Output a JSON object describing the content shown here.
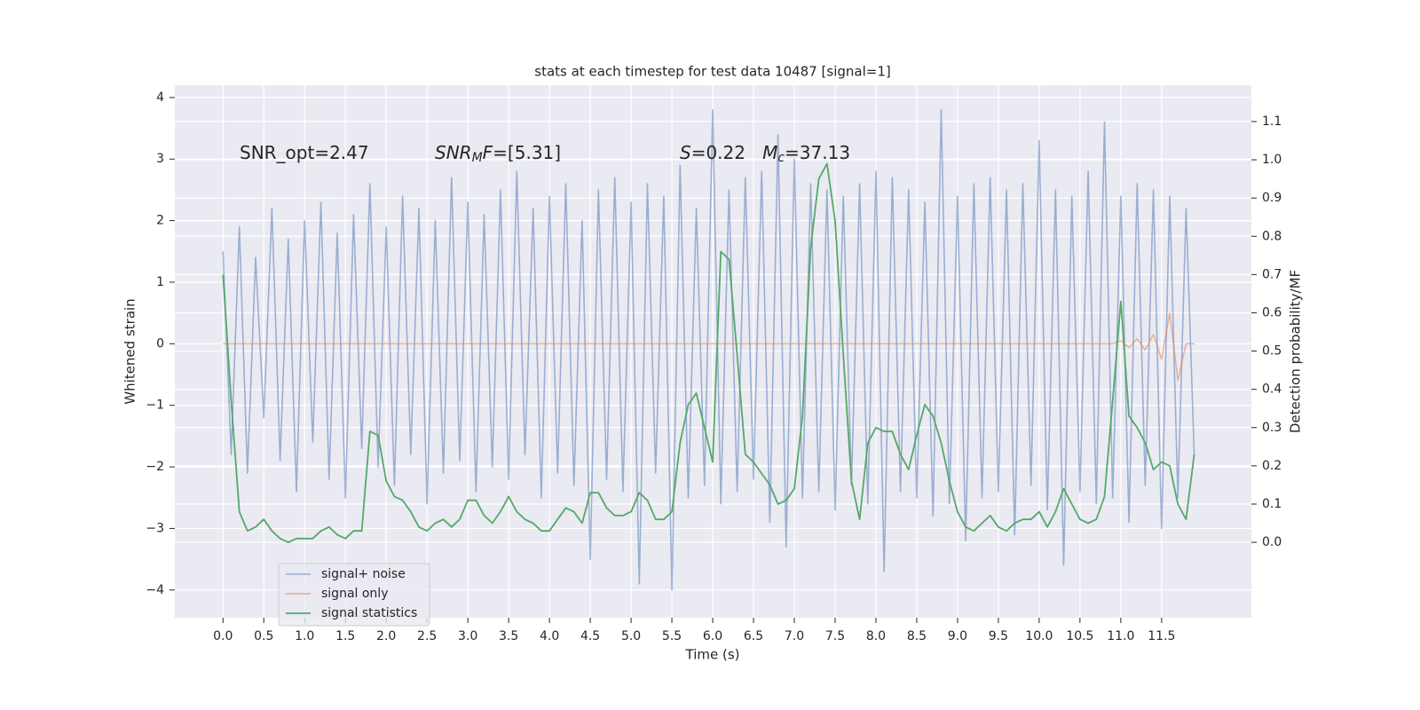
{
  "chart_data": {
    "type": "line",
    "title": "stats at each timestep for test data 10487 [signal=1]",
    "x_label": "Time (s)",
    "y_label": "Whitened strain",
    "y2_label": "Detection probability/MF",
    "annotations": [
      [
        {
          "text": "SNR_opt=2.47"
        }
      ],
      [
        {
          "text": "SNR",
          "italic": true
        },
        {
          "text": "M",
          "italic": true,
          "sub": true
        },
        {
          "text": "F",
          "italic": true
        },
        {
          "text": "=[5.31]"
        }
      ],
      [
        {
          "text": "S",
          "italic": true
        },
        {
          "text": "=0.22   "
        },
        {
          "text": "M",
          "italic": true
        },
        {
          "text": "c",
          "italic": true,
          "sub": true
        },
        {
          "text": "=37.13"
        }
      ]
    ],
    "x": [
      0,
      0.1,
      0.2,
      0.3,
      0.4,
      0.5,
      0.6,
      0.7,
      0.8,
      0.9,
      1,
      1.1,
      1.2,
      1.3,
      1.4,
      1.5,
      1.6,
      1.7,
      1.8,
      1.9,
      2,
      2.1,
      2.2,
      2.3,
      2.4,
      2.5,
      2.6,
      2.7,
      2.8,
      2.9,
      3,
      3.1,
      3.2,
      3.3,
      3.4,
      3.5,
      3.6,
      3.7,
      3.8,
      3.9,
      4,
      4.1,
      4.2,
      4.3,
      4.4,
      4.5,
      4.6,
      4.7,
      4.8,
      4.9,
      5,
      5.1,
      5.2,
      5.3,
      5.4,
      5.5,
      5.6,
      5.7,
      5.8,
      5.9,
      6,
      6.1,
      6.2,
      6.3,
      6.4,
      6.5,
      6.6,
      6.7,
      6.8,
      6.9,
      7,
      7.1,
      7.2,
      7.3,
      7.4,
      7.5,
      7.6,
      7.7,
      7.8,
      7.9,
      8,
      8.1,
      8.2,
      8.3,
      8.4,
      8.5,
      8.6,
      8.7,
      8.8,
      8.9,
      9,
      9.1,
      9.2,
      9.3,
      9.4,
      9.5,
      9.6,
      9.7,
      9.8,
      9.9,
      10,
      10.1,
      10.2,
      10.3,
      10.4,
      10.5,
      10.6,
      10.7,
      10.8,
      10.9,
      11,
      11.1,
      11.2,
      11.3,
      11.4,
      11.5,
      11.6,
      11.7,
      11.8,
      11.9
    ],
    "series": [
      {
        "name": "signal+ noise",
        "color": "#4c72b0",
        "values": [
          1.5,
          -1.8,
          1.9,
          -2.1,
          1.4,
          -1.2,
          2.2,
          -1.9,
          1.7,
          -2.4,
          2.0,
          -1.6,
          2.3,
          -2.2,
          1.8,
          -2.5,
          2.1,
          -1.7,
          2.6,
          -2.0,
          1.9,
          -2.3,
          2.4,
          -1.8,
          2.2,
          -2.6,
          2.0,
          -2.1,
          2.7,
          -1.9,
          2.3,
          -2.4,
          2.1,
          -2.0,
          2.5,
          -2.2,
          2.8,
          -1.8,
          2.2,
          -2.5,
          2.4,
          -2.1,
          2.6,
          -2.3,
          2.0,
          -3.5,
          2.5,
          -2.2,
          2.7,
          -2.4,
          2.3,
          -3.9,
          2.6,
          -2.1,
          2.4,
          -4.0,
          2.9,
          -2.5,
          2.2,
          -2.3,
          3.8,
          -2.6,
          2.5,
          -2.4,
          2.7,
          -2.2,
          2.8,
          -2.9,
          3.4,
          -3.3,
          3.0,
          -2.5,
          2.6,
          -2.4,
          2.5,
          -2.7,
          2.4,
          -2.3,
          2.6,
          -2.6,
          2.8,
          -3.7,
          2.7,
          -2.4,
          2.5,
          -2.5,
          2.3,
          -2.8,
          3.8,
          -2.6,
          2.4,
          -3.2,
          2.6,
          -2.5,
          2.7,
          -2.4,
          2.5,
          -3.1,
          2.6,
          -2.3,
          3.3,
          -2.7,
          2.5,
          -3.6,
          2.4,
          -2.4,
          2.8,
          -2.6,
          3.6,
          -2.5,
          2.4,
          -2.9,
          2.6,
          -2.3,
          2.5,
          -3.0,
          2.4,
          -2.5,
          2.2,
          -1.8
        ]
      },
      {
        "name": "signal only",
        "color": "#dd8452",
        "values": [
          0,
          0,
          0,
          0,
          0,
          0,
          0,
          0,
          0,
          0,
          0,
          0,
          0,
          0,
          0,
          0,
          0,
          0,
          0,
          0,
          0,
          0,
          0,
          0,
          0,
          0,
          0,
          0,
          0,
          0,
          0,
          0,
          0,
          0,
          0,
          0,
          0,
          0,
          0,
          0,
          0,
          0,
          0,
          0,
          0,
          0,
          0,
          0,
          0,
          0,
          0,
          0,
          0,
          0,
          0,
          0,
          0,
          0,
          0,
          0,
          0,
          0,
          0,
          0,
          0,
          0,
          0,
          0,
          0,
          0,
          0,
          0,
          0,
          0,
          0,
          0,
          0,
          0,
          0,
          0,
          0,
          0,
          0,
          0,
          0,
          0,
          0,
          0,
          0,
          0,
          0,
          0,
          0,
          0,
          0,
          0,
          0,
          0,
          0,
          0,
          0,
          0,
          0,
          0,
          0,
          0,
          0,
          0,
          0,
          0,
          0.05,
          -0.06,
          0.08,
          -0.1,
          0.15,
          -0.25,
          0.5,
          -0.6,
          0,
          0
        ]
      },
      {
        "name": "signal statistics",
        "color": "#55a868",
        "axis": "y2",
        "values": [
          0.7,
          0.37,
          0.08,
          0.03,
          0.04,
          0.06,
          0.03,
          0.01,
          0.0,
          0.01,
          0.01,
          0.01,
          0.03,
          0.04,
          0.02,
          0.01,
          0.03,
          0.03,
          0.29,
          0.28,
          0.16,
          0.12,
          0.11,
          0.08,
          0.04,
          0.03,
          0.05,
          0.06,
          0.04,
          0.06,
          0.11,
          0.11,
          0.07,
          0.05,
          0.08,
          0.12,
          0.08,
          0.06,
          0.05,
          0.03,
          0.03,
          0.06,
          0.09,
          0.08,
          0.05,
          0.13,
          0.13,
          0.09,
          0.07,
          0.07,
          0.08,
          0.13,
          0.11,
          0.06,
          0.06,
          0.08,
          0.26,
          0.36,
          0.39,
          0.3,
          0.21,
          0.76,
          0.74,
          0.49,
          0.23,
          0.21,
          0.18,
          0.15,
          0.1,
          0.11,
          0.14,
          0.33,
          0.77,
          0.95,
          0.99,
          0.84,
          0.49,
          0.16,
          0.06,
          0.26,
          0.3,
          0.29,
          0.29,
          0.23,
          0.19,
          0.28,
          0.36,
          0.33,
          0.26,
          0.16,
          0.08,
          0.04,
          0.03,
          0.05,
          0.07,
          0.04,
          0.03,
          0.05,
          0.06,
          0.06,
          0.08,
          0.04,
          0.08,
          0.14,
          0.1,
          0.06,
          0.05,
          0.06,
          0.12,
          0.37,
          0.63,
          0.33,
          0.3,
          0.26,
          0.19,
          0.21,
          0.2,
          0.1,
          0.06,
          0.23
        ]
      }
    ],
    "xlim": [
      -0.59,
      12.6
    ],
    "ylim": [
      -4.45,
      4.2
    ],
    "y2lim": [
      -0.197,
      1.195
    ],
    "xticks": [
      {
        "value": 0,
        "label": "0.0"
      },
      {
        "value": 0.5,
        "label": "0.5"
      },
      {
        "value": 1,
        "label": "1.0"
      },
      {
        "value": 1.5,
        "label": "1.5"
      },
      {
        "value": 2,
        "label": "2.0"
      },
      {
        "value": 2.5,
        "label": "2.5"
      },
      {
        "value": 3,
        "label": "3.0"
      },
      {
        "value": 3.5,
        "label": "3.5"
      },
      {
        "value": 4,
        "label": "4.0"
      },
      {
        "value": 4.5,
        "label": "4.5"
      },
      {
        "value": 5,
        "label": "5.0"
      },
      {
        "value": 5.5,
        "label": "5.5"
      },
      {
        "value": 6,
        "label": "6.0"
      },
      {
        "value": 6.5,
        "label": "6.5"
      },
      {
        "value": 7,
        "label": "7.0"
      },
      {
        "value": 7.5,
        "label": "7.5"
      },
      {
        "value": 8,
        "label": "8.0"
      },
      {
        "value": 8.5,
        "label": "8.5"
      },
      {
        "value": 9,
        "label": "9.0"
      },
      {
        "value": 9.5,
        "label": "9.5"
      },
      {
        "value": 10,
        "label": "10.0"
      },
      {
        "value": 10.5,
        "label": "10.5"
      },
      {
        "value": 11,
        "label": "11.0"
      },
      {
        "value": 11.5,
        "label": "11.5"
      }
    ],
    "yticks": [
      {
        "value": -4,
        "label": "−4"
      },
      {
        "value": -3,
        "label": "−3"
      },
      {
        "value": -2,
        "label": "−2"
      },
      {
        "value": -1,
        "label": "−1"
      },
      0,
      1,
      2,
      3,
      4
    ],
    "y2ticks": [
      {
        "value": 0,
        "label": "0.0"
      },
      {
        "value": 0.1,
        "label": "0.1"
      },
      {
        "value": 0.2,
        "label": "0.2"
      },
      {
        "value": 0.3,
        "label": "0.3"
      },
      {
        "value": 0.4,
        "label": "0.4"
      },
      {
        "value": 0.5,
        "label": "0.5"
      },
      {
        "value": 0.6,
        "label": "0.6"
      },
      {
        "value": 0.7,
        "label": "0.7"
      },
      {
        "value": 0.8,
        "label": "0.8"
      },
      {
        "value": 0.9,
        "label": "0.9"
      },
      {
        "value": 1,
        "label": "1.0"
      },
      {
        "value": 1.1,
        "label": "1.1"
      }
    ],
    "grid": true,
    "legend": "lower left"
  }
}
